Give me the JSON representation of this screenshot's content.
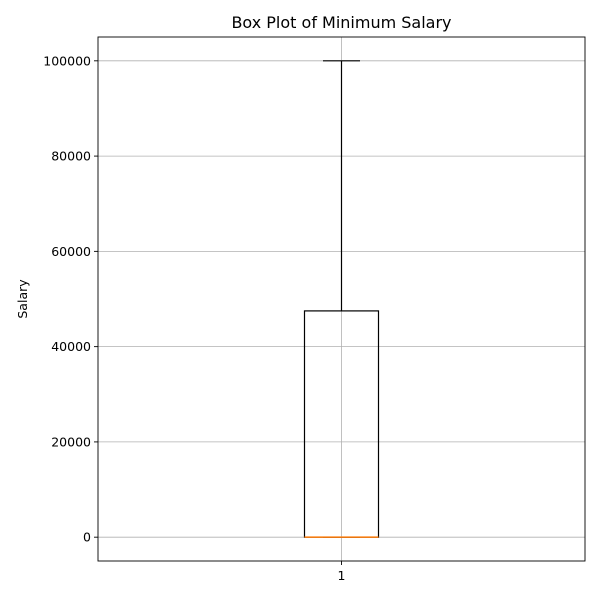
{
  "chart_data": {
    "type": "box",
    "title": "Box Plot of Minimum Salary",
    "xlabel": "",
    "ylabel": "Salary",
    "categories": [
      "1"
    ],
    "ylim": [
      -5000,
      105000
    ],
    "yticks": [
      0,
      20000,
      40000,
      60000,
      80000,
      100000
    ],
    "grid": true,
    "boxes": [
      {
        "category": "1",
        "whisker_low": 0,
        "q1": 0,
        "median": 0,
        "q3": 47500,
        "whisker_high": 100000
      }
    ],
    "colors": {
      "box": "#000000",
      "median": "#ff7f0e",
      "grid": "#b0b0b0"
    }
  }
}
